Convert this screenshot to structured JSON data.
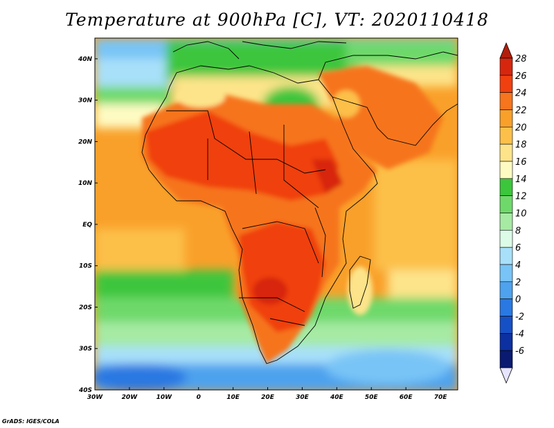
{
  "title": "Temperature at 900hPa [C], VT: 2020110418",
  "credit": "GrADS: IGES/COLA",
  "map": {
    "projection": "latlon",
    "lon_range": [
      -30,
      75
    ],
    "lat_range": [
      -40,
      45
    ],
    "lat_ticks": [
      {
        "value": 40,
        "label": "40N"
      },
      {
        "value": 30,
        "label": "30N"
      },
      {
        "value": 20,
        "label": "20N"
      },
      {
        "value": 10,
        "label": "10N"
      },
      {
        "value": 0,
        "label": "EQ"
      },
      {
        "value": -10,
        "label": "10S"
      },
      {
        "value": -20,
        "label": "20S"
      },
      {
        "value": -30,
        "label": "30S"
      },
      {
        "value": -40,
        "label": "40S"
      }
    ],
    "lon_ticks": [
      {
        "value": -30,
        "label": "30W"
      },
      {
        "value": -20,
        "label": "20W"
      },
      {
        "value": -10,
        "label": "10W"
      },
      {
        "value": 0,
        "label": "0"
      },
      {
        "value": 10,
        "label": "10E"
      },
      {
        "value": 20,
        "label": "20E"
      },
      {
        "value": 30,
        "label": "30E"
      },
      {
        "value": 40,
        "label": "40E"
      },
      {
        "value": 50,
        "label": "50E"
      },
      {
        "value": 60,
        "label": "60E"
      },
      {
        "value": 70,
        "label": "70E"
      }
    ]
  },
  "colorbar": {
    "levels": [
      {
        "label": "28",
        "color": "#d7260e"
      },
      {
        "label": "26",
        "color": "#f0400f"
      },
      {
        "label": "24",
        "color": "#f6751d"
      },
      {
        "label": "22",
        "color": "#f9a02a"
      },
      {
        "label": "20",
        "color": "#fcc04a"
      },
      {
        "label": "18",
        "color": "#fde48a"
      },
      {
        "label": "16",
        "color": "#fefbc2"
      },
      {
        "label": "14",
        "color": "#3cc63c"
      },
      {
        "label": "12",
        "color": "#6ed96a"
      },
      {
        "label": "10",
        "color": "#a6eaa4"
      },
      {
        "label": "8",
        "color": "#dcfce8"
      },
      {
        "label": "6",
        "color": "#a8e0fa"
      },
      {
        "label": "4",
        "color": "#78c4f6"
      },
      {
        "label": "2",
        "color": "#4ea2ee"
      },
      {
        "label": "0",
        "color": "#2a78e2"
      },
      {
        "label": "-2",
        "color": "#1650c6"
      },
      {
        "label": "-4",
        "color": "#0c30a0"
      },
      {
        "label": "-6",
        "color": "#0a1a70"
      }
    ],
    "top_arrow_color": "#b21e0c",
    "bottom_arrow_color": "#e6e4ff"
  }
}
